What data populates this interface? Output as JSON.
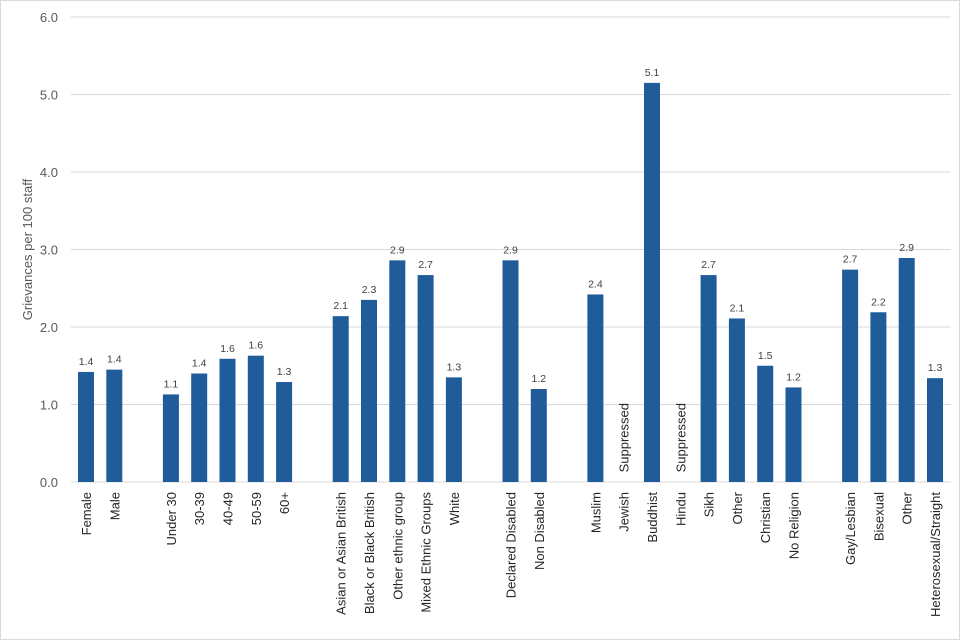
{
  "chart_data": {
    "type": "bar",
    "ylabel": "Grievances per 100 staff",
    "xlabel": "",
    "ylim": [
      0,
      6
    ],
    "yticks": [
      "0.0",
      "1.0",
      "2.0",
      "3.0",
      "4.0",
      "5.0",
      "6.0"
    ],
    "grid": true,
    "series_color": "#1f5c99",
    "groups": [
      {
        "categories": [
          "Female",
          "Male"
        ],
        "values": [
          1.42,
          1.45
        ],
        "labels": [
          "1.4",
          "1.4"
        ]
      },
      {
        "categories": [
          "Under 30",
          "30-39",
          "40-49",
          "50-59",
          "60+"
        ],
        "values": [
          1.13,
          1.4,
          1.59,
          1.63,
          1.29
        ],
        "labels": [
          "1.1",
          "1.4",
          "1.6",
          "1.6",
          "1.3"
        ]
      },
      {
        "categories": [
          "Asian or Asian British",
          "Black or Black British",
          "Other ethnic group",
          "Mixed Ethnic Groups",
          "White"
        ],
        "values": [
          2.14,
          2.35,
          2.86,
          2.67,
          1.35
        ],
        "labels": [
          "2.1",
          "2.3",
          "2.9",
          "2.7",
          "1.3"
        ]
      },
      {
        "categories": [
          "Declared Disabled",
          "Non Disabled"
        ],
        "values": [
          2.86,
          1.2
        ],
        "labels": [
          "2.9",
          "1.2"
        ]
      },
      {
        "categories": [
          "Muslim",
          "Jewish",
          "Buddhist",
          "Hindu",
          "Sikh",
          "Other",
          "Christian",
          "No Religion"
        ],
        "values": [
          2.42,
          null,
          5.15,
          null,
          2.67,
          2.11,
          1.5,
          1.22
        ],
        "labels": [
          "2.4",
          "Suppressed",
          "5.1",
          "Suppressed",
          "2.7",
          "2.1",
          "1.5",
          "1.2"
        ]
      },
      {
        "categories": [
          "Gay/Lesbian",
          "Bisexual",
          "Other",
          "Heterosexual/Straight"
        ],
        "values": [
          2.74,
          2.19,
          2.89,
          1.34
        ],
        "labels": [
          "2.7",
          "2.2",
          "2.9",
          "1.3"
        ]
      }
    ]
  }
}
